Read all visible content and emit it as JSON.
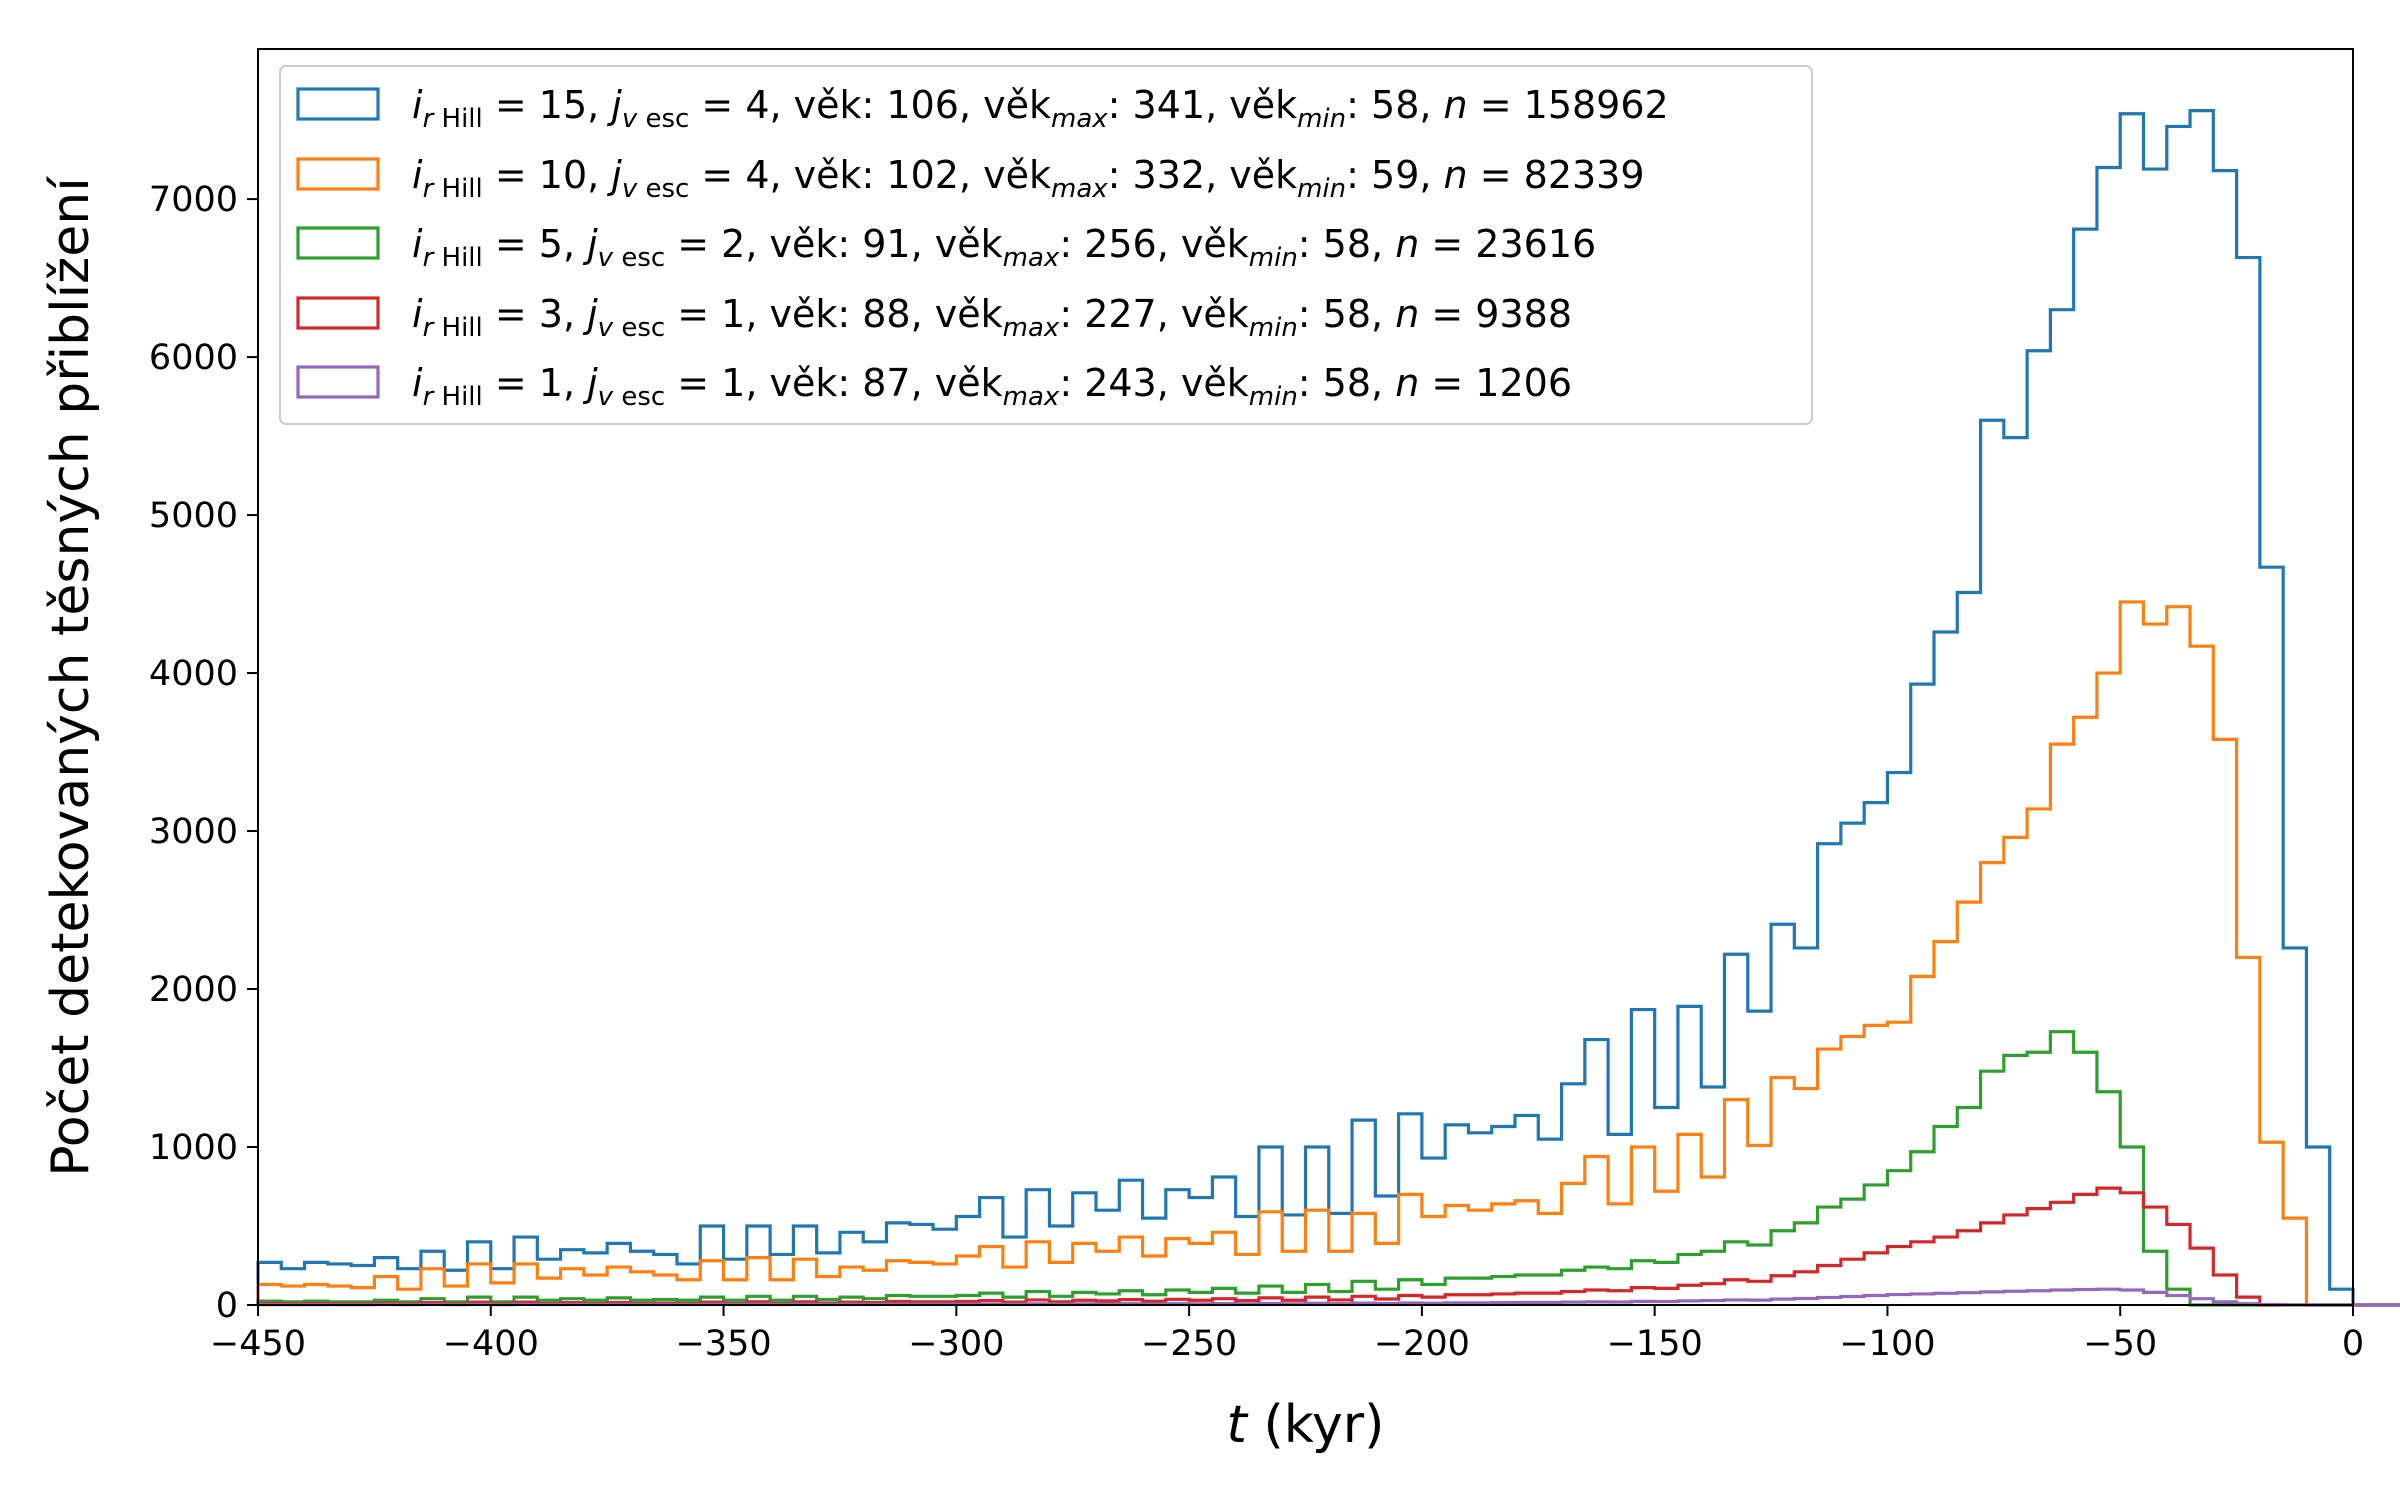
{
  "chart_data": {
    "type": "histogram",
    "xlabel_var": "t",
    "xlabel_unit": " (kyr)",
    "ylabel": "Počet detekovaných těsných přiblížení",
    "xlim": [
      -450,
      0
    ],
    "ylim": [
      0,
      7950
    ],
    "x_ticks": [
      -450,
      -400,
      -350,
      -300,
      -250,
      -200,
      -150,
      -100,
      -50,
      0
    ],
    "x_tick_labels": [
      "−450",
      "−400",
      "−350",
      "−300",
      "−250",
      "−200",
      "−150",
      "−100",
      "−50",
      "0"
    ],
    "y_ticks": [
      0,
      1000,
      2000,
      3000,
      4000,
      5000,
      6000,
      7000
    ],
    "y_tick_labels": [
      "0",
      "1000",
      "2000",
      "3000",
      "4000",
      "5000",
      "6000",
      "7000"
    ],
    "grid": false,
    "legend_position": "top-left",
    "bin_edges_start": -450,
    "bin_width": 5,
    "series": [
      {
        "color": "#1f77b4",
        "legend": {
          "i_val": "15",
          "j_val": "4",
          "vek": "106",
          "vek_max": "341",
          "vek_min": "58",
          "n": "158962"
        },
        "values": [
          270,
          230,
          270,
          260,
          250,
          300,
          230,
          340,
          220,
          400,
          230,
          430,
          290,
          350,
          330,
          390,
          340,
          320,
          260,
          500,
          290,
          500,
          320,
          500,
          330,
          460,
          400,
          520,
          510,
          480,
          560,
          680,
          430,
          730,
          500,
          710,
          600,
          790,
          550,
          730,
          680,
          810,
          560,
          1000,
          570,
          1000,
          580,
          1170,
          690,
          1210,
          930,
          1140,
          1090,
          1130,
          1200,
          1050,
          1400,
          1680,
          1080,
          1870,
          1250,
          1890,
          1380,
          2220,
          1860,
          2410,
          2260,
          2920,
          3050,
          3180,
          3370,
          3930,
          4260,
          4510,
          5600,
          5490,
          6040,
          6300,
          6810,
          7200,
          7540,
          7190,
          7460,
          7560,
          7180,
          6630,
          4670,
          2260,
          1000,
          100,
          0,
          0,
          0,
          0,
          0,
          0,
          0,
          0,
          0,
          0
        ]
      },
      {
        "color": "#ff7f0e",
        "legend": {
          "i_val": "10",
          "j_val": "4",
          "vek": "102",
          "vek_max": "332",
          "vek_min": "59",
          "n": "82339"
        },
        "values": [
          130,
          120,
          130,
          120,
          110,
          180,
          100,
          230,
          120,
          260,
          140,
          260,
          170,
          230,
          190,
          240,
          210,
          190,
          160,
          280,
          160,
          300,
          160,
          290,
          180,
          240,
          220,
          280,
          270,
          260,
          310,
          370,
          240,
          400,
          270,
          390,
          340,
          430,
          310,
          420,
          390,
          460,
          320,
          590,
          340,
          600,
          340,
          580,
          390,
          700,
          560,
          630,
          600,
          640,
          660,
          580,
          770,
          940,
          640,
          1000,
          720,
          1080,
          810,
          1300,
          1010,
          1440,
          1370,
          1620,
          1700,
          1770,
          1790,
          2080,
          2300,
          2550,
          2800,
          2960,
          3140,
          3550,
          3720,
          4000,
          4450,
          4310,
          4420,
          4170,
          3580,
          2200,
          1030,
          550,
          0,
          0,
          0,
          0,
          0,
          0,
          0,
          0,
          0,
          0,
          0,
          0
        ]
      },
      {
        "color": "#2ca02c",
        "legend": {
          "i_val": " 5",
          "j_val": "2",
          "vek": " 91",
          "vek_max": "256",
          "vek_min": "58",
          "n": "23616"
        },
        "values": [
          25,
          20,
          25,
          20,
          20,
          30,
          20,
          40,
          20,
          50,
          20,
          50,
          30,
          40,
          30,
          45,
          30,
          35,
          30,
          50,
          30,
          55,
          30,
          55,
          35,
          50,
          40,
          60,
          55,
          55,
          60,
          75,
          50,
          85,
          55,
          80,
          70,
          90,
          65,
          95,
          80,
          105,
          75,
          120,
          80,
          130,
          85,
          150,
          100,
          160,
          130,
          170,
          170,
          180,
          190,
          190,
          220,
          240,
          230,
          280,
          270,
          320,
          340,
          400,
          380,
          470,
          520,
          620,
          670,
          760,
          850,
          970,
          1130,
          1250,
          1480,
          1580,
          1600,
          1730,
          1600,
          1350,
          1000,
          340,
          100,
          0,
          0,
          0,
          0,
          0,
          0,
          0,
          0,
          0,
          0,
          0,
          0,
          0,
          0,
          0,
          0,
          0
        ]
      },
      {
        "color": "#d62728",
        "legend": {
          "i_val": " 3",
          "j_val": "1",
          "vek": " 88",
          "vek_max": "227",
          "vek_min": "58",
          "n": "9388"
        },
        "values": [
          10,
          8,
          10,
          8,
          8,
          12,
          8,
          15,
          8,
          18,
          8,
          18,
          10,
          15,
          10,
          16,
          10,
          12,
          10,
          18,
          10,
          20,
          10,
          20,
          12,
          18,
          15,
          22,
          20,
          20,
          22,
          28,
          18,
          32,
          20,
          30,
          26,
          34,
          24,
          36,
          30,
          40,
          28,
          45,
          30,
          50,
          32,
          55,
          38,
          60,
          50,
          65,
          65,
          70,
          75,
          75,
          85,
          95,
          90,
          110,
          105,
          125,
          135,
          160,
          150,
          185,
          210,
          250,
          290,
          330,
          370,
          400,
          430,
          470,
          520,
          570,
          610,
          650,
          700,
          740,
          710,
          620,
          510,
          360,
          190,
          50,
          0,
          0,
          0,
          0,
          0,
          0,
          0,
          0,
          0,
          0,
          0,
          0,
          0,
          0
        ]
      },
      {
        "color": "#9467bd",
        "legend": {
          "i_val": " 1",
          "j_val": "1",
          "vek": " 87",
          "vek_max": "243",
          "vek_min": "58",
          "n": "1206"
        },
        "values": [
          2,
          2,
          2,
          2,
          2,
          3,
          2,
          4,
          2,
          4,
          2,
          4,
          3,
          4,
          3,
          4,
          3,
          3,
          3,
          4,
          3,
          5,
          3,
          5,
          3,
          5,
          4,
          5,
          5,
          5,
          5,
          6,
          5,
          7,
          5,
          7,
          6,
          8,
          6,
          8,
          7,
          9,
          7,
          10,
          7,
          11,
          8,
          12,
          9,
          13,
          11,
          14,
          14,
          15,
          16,
          16,
          18,
          20,
          19,
          23,
          22,
          26,
          28,
          32,
          31,
          37,
          41,
          48,
          54,
          60,
          66,
          70,
          74,
          78,
          83,
          87,
          90,
          95,
          98,
          100,
          95,
          80,
          60,
          40,
          20,
          8,
          3,
          1,
          0,
          0,
          0,
          0,
          0,
          0,
          0,
          0,
          0,
          0,
          0,
          0
        ]
      }
    ]
  }
}
